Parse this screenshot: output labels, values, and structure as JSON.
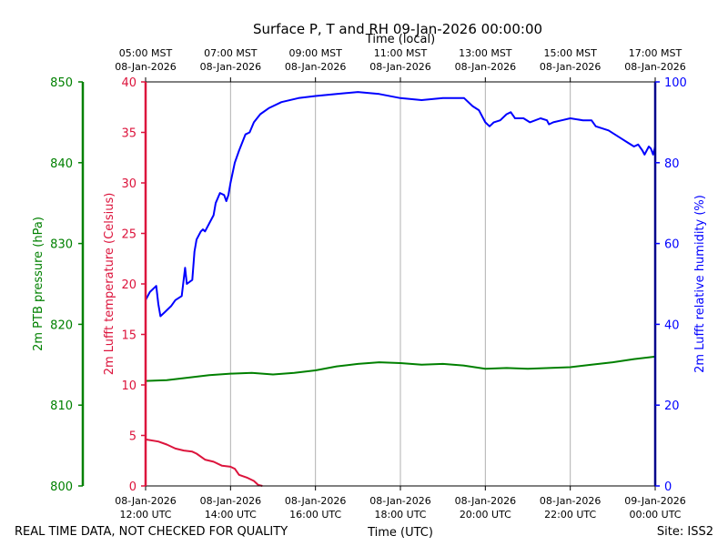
{
  "colors": {
    "pressure": "#008000",
    "temperature": "#dc143c",
    "humidity": "#0000ff",
    "grid": "#b0b0b0",
    "frame": "#000000"
  },
  "chart_data": {
    "type": "line",
    "title": "Surface P, T and RH 09-Jan-2026 00:00:00",
    "top_axis_label": "Time (local)",
    "xlabel": "Time (UTC)",
    "footer_left": "REAL TIME DATA, NOT CHECKED FOR QUALITY",
    "footer_right": "Site: ISS2",
    "x_range_hours": [
      12,
      24
    ],
    "bottom_ticks": [
      {
        "hour": 12,
        "line1": "08-Jan-2026",
        "line2": "12:00 UTC"
      },
      {
        "hour": 14,
        "line1": "08-Jan-2026",
        "line2": "14:00 UTC"
      },
      {
        "hour": 16,
        "line1": "08-Jan-2026",
        "line2": "16:00 UTC"
      },
      {
        "hour": 18,
        "line1": "08-Jan-2026",
        "line2": "18:00 UTC"
      },
      {
        "hour": 20,
        "line1": "08-Jan-2026",
        "line2": "20:00 UTC"
      },
      {
        "hour": 22,
        "line1": "08-Jan-2026",
        "line2": "22:00 UTC"
      },
      {
        "hour": 24,
        "line1": "09-Jan-2026",
        "line2": "00:00 UTC"
      }
    ],
    "top_ticks": [
      {
        "hour": 12,
        "line1": "05:00 MST",
        "line2": "08-Jan-2026"
      },
      {
        "hour": 14,
        "line1": "07:00 MST",
        "line2": "08-Jan-2026"
      },
      {
        "hour": 16,
        "line1": "09:00 MST",
        "line2": "08-Jan-2026"
      },
      {
        "hour": 18,
        "line1": "11:00 MST",
        "line2": "08-Jan-2026"
      },
      {
        "hour": 20,
        "line1": "13:00 MST",
        "line2": "08-Jan-2026"
      },
      {
        "hour": 22,
        "line1": "15:00 MST",
        "line2": "08-Jan-2026"
      },
      {
        "hour": 24,
        "line1": "17:00 MST",
        "line2": "08-Jan-2026"
      }
    ],
    "series": [
      {
        "name": "pressure",
        "ylabel": "2m PTB pressure (hPa)",
        "ylim": [
          800,
          850
        ],
        "ticks": [
          800,
          810,
          820,
          830,
          840,
          850
        ],
        "points": [
          [
            12,
            813.0
          ],
          [
            12.5,
            813.1
          ],
          [
            13,
            813.4
          ],
          [
            13.5,
            813.7
          ],
          [
            14,
            813.9
          ],
          [
            14.5,
            814.0
          ],
          [
            15,
            813.8
          ],
          [
            15.5,
            814.0
          ],
          [
            16,
            814.3
          ],
          [
            16.5,
            814.8
          ],
          [
            17,
            815.1
          ],
          [
            17.5,
            815.3
          ],
          [
            18,
            815.2
          ],
          [
            18.5,
            815.0
          ],
          [
            19,
            815.1
          ],
          [
            19.5,
            814.9
          ],
          [
            20,
            814.5
          ],
          [
            20.5,
            814.6
          ],
          [
            21,
            814.5
          ],
          [
            21.5,
            814.6
          ],
          [
            22,
            814.7
          ],
          [
            22.5,
            815.0
          ],
          [
            23,
            815.3
          ],
          [
            23.5,
            815.7
          ],
          [
            24,
            816.0
          ]
        ]
      },
      {
        "name": "temperature",
        "ylabel": "2m Lufft temperature (Celsius)",
        "ylim": [
          0,
          40
        ],
        "ticks": [
          0,
          5,
          10,
          15,
          20,
          25,
          30,
          35,
          40
        ],
        "points": [
          [
            12,
            4.6
          ],
          [
            12.3,
            4.4
          ],
          [
            12.5,
            4.1
          ],
          [
            12.7,
            3.7
          ],
          [
            12.9,
            3.5
          ],
          [
            13.1,
            3.4
          ],
          [
            13.2,
            3.2
          ],
          [
            13.4,
            2.6
          ],
          [
            13.6,
            2.4
          ],
          [
            13.8,
            2.0
          ],
          [
            14,
            1.9
          ],
          [
            14.1,
            1.7
          ],
          [
            14.2,
            1.1
          ],
          [
            14.4,
            0.8
          ],
          [
            14.55,
            0.5
          ],
          [
            14.65,
            0.1
          ],
          [
            14.75,
            0.0
          ]
        ]
      },
      {
        "name": "humidity",
        "ylabel": "2m Lufft relative humidity (%)",
        "ylim": [
          0,
          100
        ],
        "ticks": [
          0,
          20,
          40,
          60,
          80,
          100
        ],
        "points": [
          [
            12,
            46
          ],
          [
            12.1,
            48
          ],
          [
            12.25,
            49.5
          ],
          [
            12.3,
            45
          ],
          [
            12.35,
            42
          ],
          [
            12.45,
            43
          ],
          [
            12.6,
            44.5
          ],
          [
            12.7,
            46
          ],
          [
            12.85,
            47
          ],
          [
            12.93,
            54
          ],
          [
            12.97,
            50
          ],
          [
            13.1,
            51
          ],
          [
            13.15,
            58
          ],
          [
            13.2,
            61
          ],
          [
            13.3,
            63
          ],
          [
            13.35,
            63.5
          ],
          [
            13.4,
            63
          ],
          [
            13.5,
            65
          ],
          [
            13.6,
            67
          ],
          [
            13.65,
            70
          ],
          [
            13.75,
            72.5
          ],
          [
            13.85,
            72
          ],
          [
            13.9,
            70.5
          ],
          [
            13.95,
            72
          ],
          [
            14,
            75
          ],
          [
            14.1,
            80
          ],
          [
            14.2,
            83
          ],
          [
            14.35,
            87
          ],
          [
            14.45,
            87.5
          ],
          [
            14.55,
            90
          ],
          [
            14.7,
            92
          ],
          [
            14.9,
            93.5
          ],
          [
            15.2,
            95
          ],
          [
            15.6,
            96
          ],
          [
            16,
            96.5
          ],
          [
            16.5,
            97
          ],
          [
            17,
            97.5
          ],
          [
            17.5,
            97
          ],
          [
            18,
            96
          ],
          [
            18.5,
            95.5
          ],
          [
            19,
            96
          ],
          [
            19.5,
            96
          ],
          [
            19.7,
            94
          ],
          [
            19.85,
            93
          ],
          [
            20,
            90
          ],
          [
            20.1,
            89
          ],
          [
            20.2,
            90
          ],
          [
            20.35,
            90.5
          ],
          [
            20.5,
            92
          ],
          [
            20.6,
            92.5
          ],
          [
            20.7,
            91
          ],
          [
            20.9,
            91
          ],
          [
            21.05,
            90
          ],
          [
            21.3,
            91
          ],
          [
            21.45,
            90.5
          ],
          [
            21.5,
            89.5
          ],
          [
            21.6,
            90
          ],
          [
            21.8,
            90.5
          ],
          [
            22,
            91
          ],
          [
            22.3,
            90.5
          ],
          [
            22.5,
            90.5
          ],
          [
            22.6,
            89
          ],
          [
            22.9,
            88
          ],
          [
            23.2,
            86
          ],
          [
            23.35,
            85
          ],
          [
            23.5,
            84
          ],
          [
            23.6,
            84.5
          ],
          [
            23.7,
            83
          ],
          [
            23.75,
            82
          ],
          [
            23.85,
            84
          ],
          [
            23.9,
            83.5
          ],
          [
            23.95,
            82
          ],
          [
            24,
            84
          ]
        ]
      }
    ]
  }
}
